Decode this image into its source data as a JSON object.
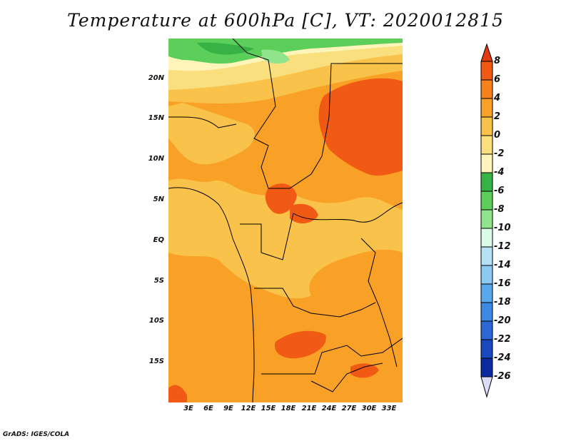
{
  "title": "Temperature at 600hPa [C], VT: 2020012815",
  "credit": "GrADS: IGES/COLA",
  "map": {
    "y_ticks": [
      "20N",
      "15N",
      "10N",
      "5N",
      "EQ",
      "5S",
      "10S",
      "15S"
    ],
    "x_ticks": [
      "3E",
      "6E",
      "9E",
      "12E",
      "15E",
      "18E",
      "21E",
      "24E",
      "27E",
      "30E",
      "33E"
    ]
  },
  "colorbar": {
    "labels": [
      "8",
      "6",
      "4",
      "2",
      "0",
      "-2",
      "-4",
      "-6",
      "-8",
      "-10",
      "-12",
      "-14",
      "-16",
      "-18",
      "-20",
      "-22",
      "-24",
      "-26"
    ],
    "colors": {
      "c8": "#e03a10",
      "c6": "#f05a14",
      "c4": "#f6821e",
      "c2": "#f8a126",
      "c0": "#f9c24a",
      "cm2": "#fadf7e",
      "cm4": "#fff5ba",
      "cm6": "#36b344",
      "cm8": "#5ccf5a",
      "cm10": "#90e48c",
      "cm12": "#dafbe6",
      "cm14": "#b6e0f6",
      "cm16": "#8ccaf2",
      "cm18": "#5aa8ec",
      "cm20": "#3c88e2",
      "cm22": "#2b68d6",
      "cm24": "#1a48bd",
      "cm26": "#0c2aa0",
      "below": "#061468",
      "bottom_tri": "#dcdcf6"
    }
  }
}
